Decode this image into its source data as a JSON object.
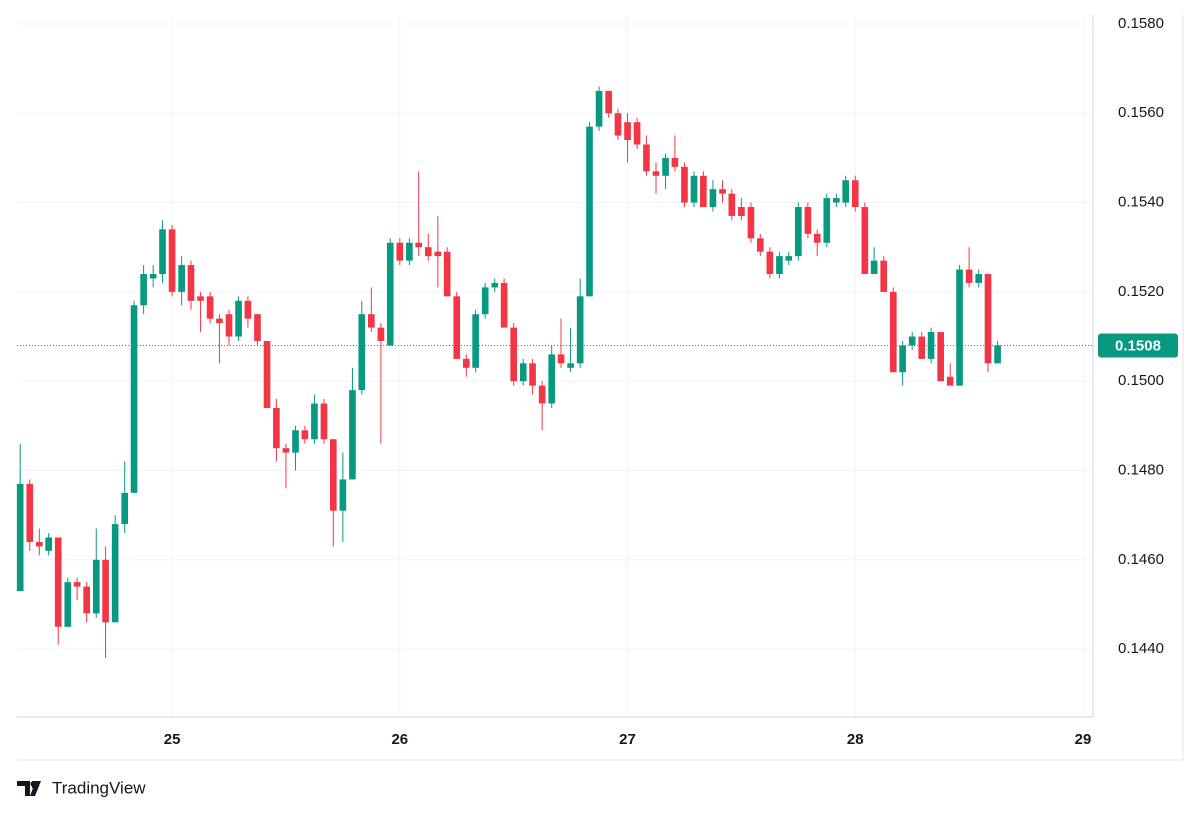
{
  "chart_data": {
    "type": "candlestick",
    "brand": "TradingView",
    "x": [
      24.333,
      24.375,
      24.417,
      24.458,
      24.5,
      24.542,
      24.583,
      24.625,
      24.667,
      24.708,
      24.75,
      24.792,
      24.833,
      24.875,
      24.917,
      24.958,
      25.0,
      25.042,
      25.083,
      25.125,
      25.167,
      25.208,
      25.25,
      25.292,
      25.333,
      25.375,
      25.417,
      25.458,
      25.5,
      25.542,
      25.583,
      25.625,
      25.667,
      25.708,
      25.75,
      25.792,
      25.833,
      25.875,
      25.917,
      25.958,
      26.0,
      26.042,
      26.083,
      26.125,
      26.167,
      26.208,
      26.25,
      26.292,
      26.333,
      26.375,
      26.417,
      26.458,
      26.5,
      26.542,
      26.583,
      26.625,
      26.667,
      26.708,
      26.75,
      26.792,
      26.833,
      26.875,
      26.917,
      26.958,
      27.0,
      27.042,
      27.083,
      27.125,
      27.167,
      27.208,
      27.25,
      27.292,
      27.333,
      27.375,
      27.417,
      27.458,
      27.5,
      27.542,
      27.583,
      27.625,
      27.667,
      27.708,
      27.75,
      27.792,
      27.833,
      27.875,
      27.917,
      27.958,
      28.0,
      28.042,
      28.083,
      28.125,
      28.167,
      28.208,
      28.25,
      28.292,
      28.333,
      28.375,
      28.417,
      28.458,
      28.5,
      28.542,
      28.583,
      28.625
    ],
    "open": [
      0.1453,
      0.1477,
      0.1464,
      0.1462,
      0.1465,
      0.1445,
      0.1455,
      0.1454,
      0.1448,
      0.146,
      0.1446,
      0.1468,
      0.1475,
      0.1517,
      0.1523,
      0.1524,
      0.1534,
      0.152,
      0.1526,
      0.1519,
      0.1519,
      0.1514,
      0.1515,
      0.151,
      0.1518,
      0.1515,
      0.1509,
      0.1494,
      0.1485,
      0.1484,
      0.1489,
      0.1487,
      0.1495,
      0.1487,
      0.1471,
      0.1478,
      0.1498,
      0.1515,
      0.1512,
      0.1508,
      0.1531,
      0.1527,
      0.1531,
      0.153,
      0.1529,
      0.1529,
      0.1519,
      0.1505,
      0.1503,
      0.1515,
      0.1521,
      0.1522,
      0.1512,
      0.15,
      0.1504,
      0.1499,
      0.1495,
      0.1506,
      0.1503,
      0.1504,
      0.1519,
      0.1557,
      0.1565,
      0.156,
      0.1558,
      0.1558,
      0.1553,
      0.1547,
      0.1546,
      0.155,
      0.1548,
      0.154,
      0.1546,
      0.1539,
      0.1543,
      0.1542,
      0.1539,
      0.1539,
      0.1532,
      0.1529,
      0.1524,
      0.1527,
      0.1528,
      0.1539,
      0.1533,
      0.1531,
      0.154,
      0.154,
      0.1545,
      0.1539,
      0.1524,
      0.1527,
      0.152,
      0.1502,
      0.1508,
      0.151,
      0.1505,
      0.1511,
      0.1501,
      0.1499,
      0.1525,
      0.1522,
      0.1524,
      0.1504
    ],
    "high": [
      0.1486,
      0.1478,
      0.1467,
      0.1466,
      0.1465,
      0.1456,
      0.1456,
      0.1455,
      0.1467,
      0.1463,
      0.147,
      0.1482,
      0.1518,
      0.1526,
      0.1526,
      0.1536,
      0.1535,
      0.1528,
      0.1527,
      0.152,
      0.152,
      0.1515,
      0.1516,
      0.1519,
      0.1519,
      0.1515,
      0.1509,
      0.1496,
      0.1486,
      0.149,
      0.149,
      0.1497,
      0.1496,
      0.1487,
      0.1484,
      0.1503,
      0.1518,
      0.1521,
      0.1513,
      0.1532,
      0.1532,
      0.1532,
      0.1547,
      0.1533,
      0.1537,
      0.153,
      0.152,
      0.1506,
      0.1516,
      0.1522,
      0.1523,
      0.1523,
      0.1513,
      0.1505,
      0.1505,
      0.15,
      0.1508,
      0.1514,
      0.1512,
      0.1523,
      0.1558,
      0.1566,
      0.1565,
      0.1561,
      0.156,
      0.1559,
      0.1555,
      0.1549,
      0.1551,
      0.1555,
      0.1549,
      0.1547,
      0.1547,
      0.1545,
      0.1545,
      0.1543,
      0.1541,
      0.154,
      0.1533,
      0.153,
      0.1529,
      0.1529,
      0.154,
      0.154,
      0.1534,
      0.1542,
      0.1542,
      0.1546,
      0.1546,
      0.154,
      0.153,
      0.1528,
      0.1521,
      0.1509,
      0.1511,
      0.1511,
      0.1512,
      0.1511,
      0.1504,
      0.1526,
      0.153,
      0.1525,
      0.1524,
      0.1509
    ],
    "low": [
      0.1453,
      0.1462,
      0.1461,
      0.1461,
      0.1441,
      0.1445,
      0.1451,
      0.1446,
      0.1447,
      0.1438,
      0.1446,
      0.1466,
      0.1475,
      0.1515,
      0.1521,
      0.1522,
      0.1519,
      0.1517,
      0.1516,
      0.1511,
      0.1513,
      0.1504,
      0.1508,
      0.1509,
      0.1512,
      0.1508,
      0.1494,
      0.1482,
      0.1476,
      0.148,
      0.1486,
      0.1486,
      0.1486,
      0.1463,
      0.1464,
      0.1478,
      0.1497,
      0.1511,
      0.1486,
      0.1508,
      0.1526,
      0.1526,
      0.1528,
      0.1527,
      0.1521,
      0.1519,
      0.1505,
      0.1501,
      0.1502,
      0.1514,
      0.152,
      0.1512,
      0.1499,
      0.1499,
      0.1497,
      0.1489,
      0.1494,
      0.1503,
      0.1502,
      0.1503,
      0.1519,
      0.1556,
      0.1559,
      0.1554,
      0.1549,
      0.1552,
      0.1546,
      0.1542,
      0.1543,
      0.1547,
      0.1539,
      0.1539,
      0.1539,
      0.1538,
      0.154,
      0.1536,
      0.1536,
      0.1531,
      0.1528,
      0.1523,
      0.1523,
      0.1526,
      0.1527,
      0.1532,
      0.1528,
      0.153,
      0.1539,
      0.1539,
      0.1538,
      0.1524,
      0.1524,
      0.152,
      0.1502,
      0.1499,
      0.1507,
      0.1505,
      0.1504,
      0.15,
      0.1499,
      0.1499,
      0.1521,
      0.1521,
      0.1502,
      0.1504
    ],
    "close": [
      0.1477,
      0.1464,
      0.1463,
      0.1465,
      0.1445,
      0.1455,
      0.1454,
      0.1448,
      0.146,
      0.1446,
      0.1468,
      0.1475,
      0.1517,
      0.1524,
      0.1524,
      0.1534,
      0.152,
      0.1526,
      0.1518,
      0.1518,
      0.1514,
      0.1513,
      0.151,
      0.1518,
      0.1514,
      0.1509,
      0.1494,
      0.1485,
      0.1484,
      0.1489,
      0.1487,
      0.1495,
      0.1487,
      0.1471,
      0.1478,
      0.1498,
      0.1515,
      0.1512,
      0.1509,
      0.1531,
      0.1527,
      0.1531,
      0.153,
      0.1528,
      0.1528,
      0.1519,
      0.1505,
      0.1503,
      0.1515,
      0.1521,
      0.1522,
      0.1512,
      0.15,
      0.1504,
      0.1499,
      0.1495,
      0.1506,
      0.1504,
      0.1504,
      0.1519,
      0.1557,
      0.1565,
      0.156,
      0.1555,
      0.1554,
      0.1553,
      0.1547,
      0.1546,
      0.155,
      0.1548,
      0.154,
      0.1546,
      0.1539,
      0.1543,
      0.1542,
      0.1537,
      0.1537,
      0.1532,
      0.1529,
      0.1524,
      0.1528,
      0.1528,
      0.1539,
      0.1533,
      0.1531,
      0.1541,
      0.1541,
      0.1545,
      0.1539,
      0.1524,
      0.1527,
      0.152,
      0.1502,
      0.1508,
      0.151,
      0.1505,
      0.1511,
      0.15,
      0.1499,
      0.1525,
      0.1522,
      0.1524,
      0.1504,
      0.1508
    ],
    "up_color": "#089981",
    "down_color": "#f23645",
    "last_price": 0.1508,
    "xlim": [
      24.319,
      29.044
    ],
    "xticks": [
      25,
      26,
      27,
      28,
      29
    ],
    "ylim": [
      0.14248,
      0.1582
    ],
    "yticks": [
      {
        "value": 0.144,
        "label": "0.1440"
      },
      {
        "value": 0.146,
        "label": "0.1460"
      },
      {
        "value": 0.148,
        "label": "0.1480"
      },
      {
        "value": 0.15,
        "label": "0.1500"
      },
      {
        "value": 0.152,
        "label": "0.1520"
      },
      {
        "value": 0.154,
        "label": "0.1540"
      },
      {
        "value": 0.156,
        "label": "0.1560"
      },
      {
        "value": 0.158,
        "label": "0.1580"
      }
    ],
    "grid": true
  }
}
